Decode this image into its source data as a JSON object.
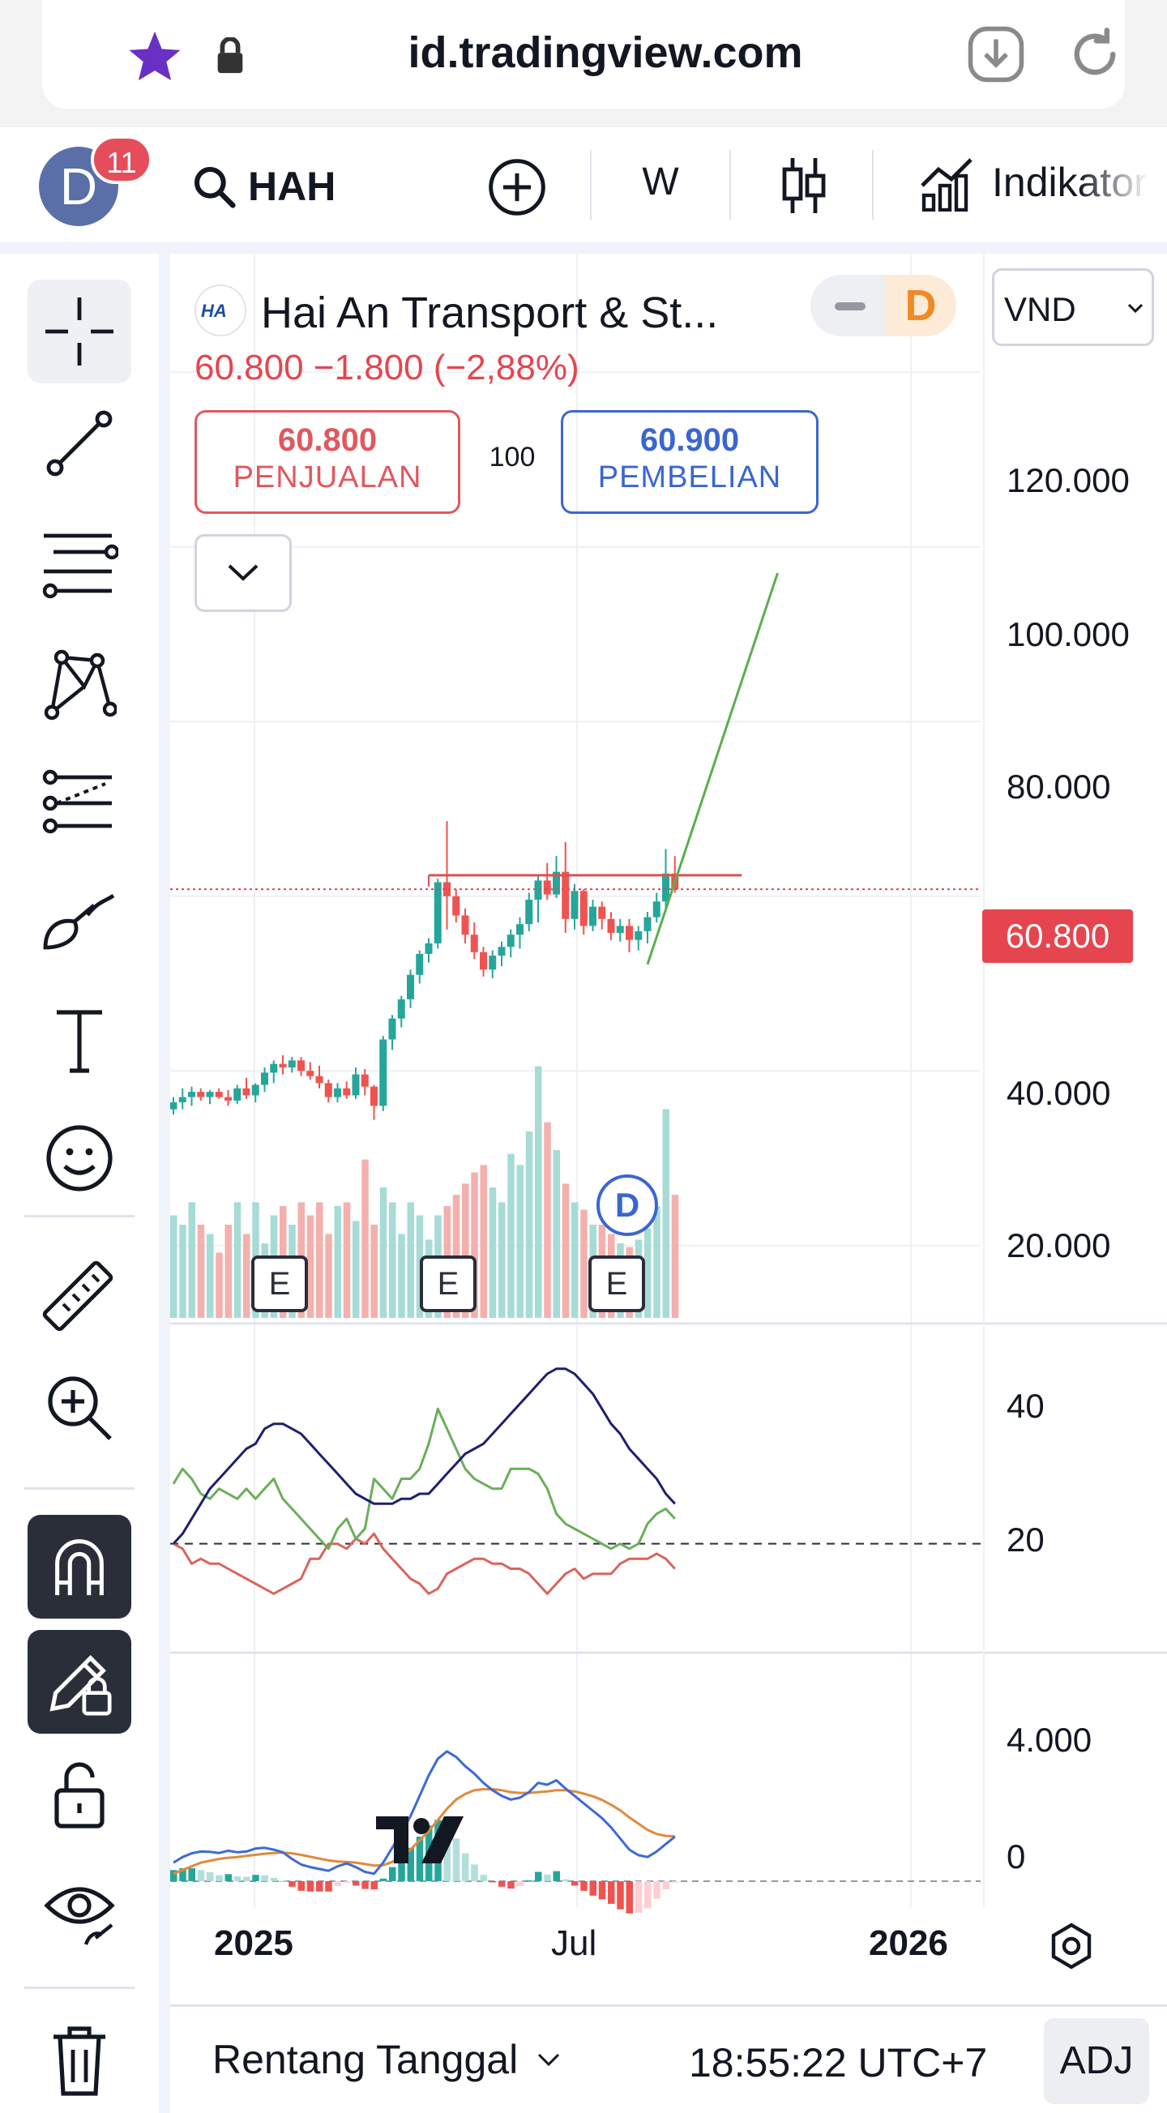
{
  "browser": {
    "url": "id.tradingview.com",
    "icons": [
      "star-icon",
      "lock-icon",
      "download-icon",
      "reload-icon"
    ]
  },
  "toolbar": {
    "avatar_letter": "D",
    "notification_count": "11",
    "symbol": "HAH",
    "interval": "W",
    "indicators_label": "Indikator"
  },
  "left_tools": [
    "crosshair",
    "trend-line",
    "fib-levels",
    "pattern",
    "forecast",
    "brush",
    "text",
    "emoji",
    "ruler",
    "zoom-in",
    "magnet",
    "lock-drawings",
    "unlock",
    "hide",
    "trash"
  ],
  "legend": {
    "logo_text": "HA",
    "title": "Hai An Transport & St...",
    "toggle_letter": "D",
    "price_change": "60.800  −1.800 (−2,88%)",
    "sell_price": "60.800",
    "sell_label": "PENJUALAN",
    "spread": "100",
    "buy_price": "60.900",
    "buy_label": "PEMBELIAN",
    "currency": "VND"
  },
  "price_axis": {
    "labels": [
      "120.000",
      "100.000",
      "80.000",
      "40.000",
      "20.000"
    ],
    "current_price": "60.800"
  },
  "oscillator_axis": {
    "labels": [
      "40",
      "20"
    ]
  },
  "macd_axis": {
    "labels": [
      "4.000",
      "0"
    ]
  },
  "time_axis": {
    "labels": [
      "2025",
      "Jul",
      "2026"
    ]
  },
  "events": {
    "earnings_label": "E",
    "dividend_label": "D"
  },
  "bottom_bar": {
    "range_label": "Rentang Tanggal",
    "clock": "18:55:22 UTC+7",
    "adj_label": "ADJ"
  },
  "colors": {
    "up": "#26a69a",
    "down": "#ef5350",
    "current_price": "#e5454f",
    "sell": "#e0585f",
    "buy": "#3a66d1",
    "adx": "#1f1f6e",
    "di_plus": "#6aaf5a",
    "di_minus": "#d9655c",
    "macd_line": "#3d6ad6",
    "signal_line": "#e08a3c",
    "forecast_line": "#5cad4f"
  },
  "chart_data": {
    "type": "candlestick",
    "x_start": "2024-12-02",
    "x_interval": "W",
    "candles": [
      [
        35600,
        37000,
        35000,
        36400
      ],
      [
        36400,
        38000,
        35600,
        37000
      ],
      [
        37000,
        38200,
        36000,
        37600
      ],
      [
        37600,
        38000,
        36600,
        37000
      ],
      [
        37000,
        37800,
        36200,
        37600
      ],
      [
        37600,
        38000,
        36800,
        37000
      ],
      [
        37000,
        37800,
        36000,
        36600
      ],
      [
        36600,
        38400,
        36200,
        38000
      ],
      [
        38000,
        39200,
        36800,
        37200
      ],
      [
        37200,
        38600,
        36400,
        38400
      ],
      [
        38400,
        40400,
        37600,
        39800
      ],
      [
        39800,
        41200,
        38600,
        40800
      ],
      [
        40800,
        41800,
        39600,
        40400
      ],
      [
        40400,
        41600,
        39800,
        41200
      ],
      [
        41200,
        41600,
        39400,
        40000
      ],
      [
        40000,
        41000,
        39000,
        39400
      ],
      [
        39400,
        40600,
        38000,
        38600
      ],
      [
        38600,
        39000,
        36400,
        37000
      ],
      [
        37000,
        38600,
        36400,
        38000
      ],
      [
        38000,
        38800,
        36800,
        37200
      ],
      [
        37200,
        40400,
        36800,
        39600
      ],
      [
        39600,
        40200,
        37200,
        38200
      ],
      [
        38200,
        38400,
        34400,
        36000
      ],
      [
        36000,
        44000,
        35400,
        43600
      ],
      [
        43600,
        46400,
        42400,
        46000
      ],
      [
        46000,
        48600,
        45000,
        48200
      ],
      [
        48200,
        51600,
        47200,
        51000
      ],
      [
        51000,
        53800,
        50000,
        53400
      ],
      [
        53400,
        55200,
        52400,
        54600
      ],
      [
        54600,
        62000,
        54000,
        61600
      ],
      [
        61600,
        68600,
        56200,
        60000
      ],
      [
        60000,
        60800,
        57000,
        57800
      ],
      [
        57800,
        58600,
        54600,
        55600
      ],
      [
        55600,
        57000,
        52800,
        53600
      ],
      [
        53600,
        54200,
        50800,
        51600
      ],
      [
        51600,
        53800,
        50600,
        53200
      ],
      [
        53200,
        54800,
        52000,
        54200
      ],
      [
        54200,
        56200,
        53000,
        55600
      ],
      [
        55600,
        57600,
        54000,
        56800
      ],
      [
        56800,
        60400,
        56000,
        59600
      ],
      [
        59600,
        62400,
        57000,
        61800
      ],
      [
        61800,
        63800,
        59600,
        60200
      ],
      [
        60200,
        64600,
        59800,
        62800
      ],
      [
        62800,
        66200,
        55800,
        57400
      ],
      [
        57400,
        61400,
        56200,
        60600
      ],
      [
        60600,
        60800,
        55600,
        56600
      ],
      [
        56600,
        59600,
        56000,
        58800
      ],
      [
        58800,
        59400,
        56200,
        57400
      ],
      [
        57400,
        58200,
        55000,
        55800
      ],
      [
        55800,
        57400,
        54800,
        56600
      ],
      [
        56600,
        57400,
        53600,
        55000
      ],
      [
        55000,
        56600,
        53800,
        56000
      ],
      [
        56000,
        58200,
        54600,
        57600
      ],
      [
        57600,
        60400,
        57000,
        59400
      ],
      [
        59400,
        65400,
        58600,
        62600
      ],
      [
        62600,
        64600,
        60400,
        60800
      ]
    ],
    "volume_rel": [
      0.55,
      0.5,
      0.62,
      0.5,
      0.45,
      0.35,
      0.5,
      0.62,
      0.45,
      0.62,
      0.4,
      0.55,
      0.6,
      0.5,
      0.62,
      0.55,
      0.62,
      0.45,
      0.6,
      0.62,
      0.52,
      0.85,
      0.5,
      0.7,
      0.62,
      0.45,
      0.62,
      0.55,
      0.42,
      0.55,
      0.6,
      0.66,
      0.72,
      0.78,
      0.82,
      0.7,
      0.62,
      0.88,
      0.82,
      1.0,
      1.35,
      1.05,
      0.9,
      0.72,
      0.62,
      0.58,
      0.5,
      0.5,
      0.45,
      0.4,
      0.38,
      0.42,
      0.48,
      0.6,
      1.12,
      0.66
    ],
    "adx_dmi": {
      "adx": [
        20,
        22,
        25,
        28,
        31,
        33,
        35,
        37,
        39,
        40,
        43,
        44,
        44,
        43,
        42,
        40,
        38,
        36,
        34,
        32,
        30,
        29,
        28,
        28,
        28,
        29,
        29,
        30,
        30,
        32,
        34,
        36,
        38,
        39,
        40,
        42,
        44,
        46,
        48,
        50,
        52,
        54,
        55,
        55,
        54,
        52,
        50,
        47,
        44,
        42,
        39,
        37,
        35,
        33,
        30,
        28
      ],
      "di_plus": [
        32,
        35,
        33,
        30,
        29,
        31,
        30,
        29,
        31,
        29,
        31,
        33,
        29,
        27,
        25,
        23,
        21,
        19,
        23,
        25,
        21,
        23,
        33,
        31,
        29,
        33,
        33,
        35,
        40,
        47,
        43,
        39,
        35,
        33,
        32,
        31,
        31,
        35,
        35,
        35,
        34,
        31,
        26,
        24,
        23,
        22,
        21,
        20,
        19,
        20,
        19,
        20,
        24,
        26,
        27,
        25
      ],
      "di_minus": [
        20,
        19,
        16,
        17,
        16,
        16,
        15,
        14,
        13,
        12,
        11,
        10,
        11,
        12,
        13,
        17,
        17,
        20,
        20,
        19,
        21,
        20,
        22,
        19,
        17,
        15,
        13,
        12,
        10,
        11,
        14,
        15,
        16,
        17,
        17,
        16,
        16,
        15,
        15,
        14,
        12,
        10,
        12,
        14,
        15,
        13,
        14,
        14,
        14,
        16,
        17,
        17,
        17,
        18,
        17,
        15
      ]
    },
    "macd": {
      "macd": [
        500,
        650,
        750,
        800,
        790,
        760,
        820,
        780,
        800,
        880,
        900,
        850,
        780,
        600,
        450,
        380,
        330,
        280,
        400,
        480,
        380,
        250,
        200,
        500,
        900,
        1300,
        1750,
        2300,
        2850,
        3300,
        3500,
        3350,
        3100,
        2900,
        2650,
        2450,
        2300,
        2200,
        2250,
        2400,
        2650,
        2600,
        2720,
        2500,
        2300,
        2100,
        1900,
        1700,
        1450,
        1150,
        850,
        700,
        650,
        800,
        1000,
        1200
      ],
      "signal": [
        200,
        300,
        400,
        500,
        550,
        600,
        630,
        650,
        680,
        710,
        740,
        760,
        770,
        750,
        710,
        660,
        610,
        560,
        530,
        520,
        500,
        460,
        420,
        430,
        520,
        660,
        850,
        1100,
        1350,
        1650,
        1950,
        2200,
        2350,
        2450,
        2480,
        2480,
        2450,
        2400,
        2380,
        2380,
        2400,
        2420,
        2450,
        2450,
        2420,
        2360,
        2290,
        2190,
        2060,
        1910,
        1720,
        1550,
        1380,
        1270,
        1220,
        1210
      ]
    },
    "ylim_price": [
      12000,
      128000
    ],
    "ylim_adx": [
      0,
      60
    ],
    "ylim_macd": [
      -700,
      5200
    ],
    "forecast_line": {
      "start_index": 52,
      "start_price": 52200,
      "end_index": 66,
      "end_price": 97000
    },
    "resistance_line": {
      "start_index": 28,
      "end_index": 57,
      "price": 62400
    },
    "current_price": 60800,
    "adx_reference": 20
  }
}
